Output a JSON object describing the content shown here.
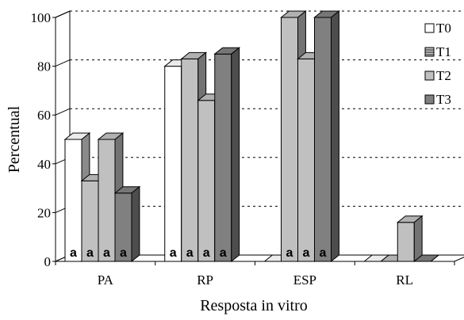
{
  "chart_data": {
    "type": "bar",
    "xlabel": "Resposta in vitro",
    "ylabel": "Percentual",
    "ylim": [
      0,
      100
    ],
    "yticks": [
      "0",
      "20",
      "40",
      "60",
      "80",
      "100"
    ],
    "categories": [
      "PA",
      "RP",
      "ESP",
      "RL"
    ],
    "series": [
      {
        "name": "T0",
        "values": [
          50,
          80,
          0,
          0
        ],
        "color": "#ffffff"
      },
      {
        "name": "T1",
        "values": [
          33,
          83,
          100,
          0
        ],
        "color": "#c0c0c0"
      },
      {
        "name": "T2",
        "values": [
          50,
          66,
          83,
          16
        ],
        "color": "#c0c0c0"
      },
      {
        "name": "T3",
        "values": [
          28,
          85,
          100,
          0
        ],
        "color": "#808080"
      }
    ],
    "bar_labels": [
      [
        "a",
        "a",
        "a",
        "a"
      ],
      [
        "a",
        "a",
        "a",
        "a"
      ],
      [
        "",
        "a",
        "a",
        "a"
      ],
      [
        "",
        "",
        "",
        ""
      ]
    ],
    "legend_position": "right",
    "grid": "dashed horizontal lines on back wall"
  }
}
